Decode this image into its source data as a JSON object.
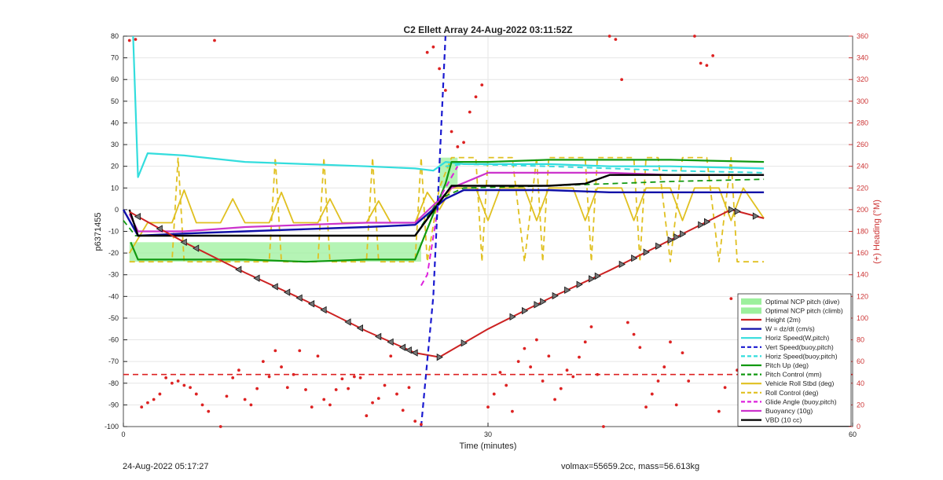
{
  "chart_data": {
    "type": "line",
    "title": "C2 Ellett Array 24-Aug-2022 03:11:52Z",
    "xlabel": "Time (minutes)",
    "ylabel": "p6371455",
    "y2label": "(+) Heading (°M)",
    "xlim": [
      0,
      60
    ],
    "ylim": [
      -100,
      80
    ],
    "y2lim": [
      0,
      360
    ],
    "xticks": [
      0,
      30,
      60
    ],
    "yticks": [
      -100,
      -90,
      -80,
      -70,
      -60,
      -50,
      -40,
      -30,
      -20,
      -10,
      0,
      10,
      20,
      30,
      40,
      50,
      60,
      70,
      80
    ],
    "y2ticks": [
      0,
      20,
      40,
      60,
      80,
      100,
      120,
      140,
      160,
      180,
      200,
      220,
      240,
      260,
      280,
      300,
      320,
      340,
      360
    ],
    "grid": true,
    "legend_position": "bottom-right",
    "colors": {
      "optimal_fill": "#9cf09c",
      "height": "#cc2222",
      "w": "#1010a8",
      "horiz": "#33dddd",
      "vert_dash": "#1a1ad0",
      "pitch": "#119911",
      "roll": "#e0c020",
      "glide": "#dd22dd",
      "buoyancy": "#cc33cc",
      "vbd": "#000000",
      "heading": "#dd2222",
      "right_axis": "#cc3333"
    },
    "legend": [
      {
        "label": "Optimal NCP pitch (dive)",
        "style": "patch",
        "color": "#9cf09c"
      },
      {
        "label": "Optimal NCP pitch (climb)",
        "style": "patch",
        "color": "#9cf09c"
      },
      {
        "label": "Height (2m)",
        "style": "solid",
        "color": "#cc2222"
      },
      {
        "label": "W = dz/dt (cm/s)",
        "style": "solid",
        "color": "#1010a8"
      },
      {
        "label": "Horiz Speed(W,pitch)",
        "style": "solid",
        "color": "#33dddd"
      },
      {
        "label": "Vert Speed(buoy,pitch)",
        "style": "dash",
        "color": "#1a1ad0"
      },
      {
        "label": "Horiz Speed(buoy,pitch)",
        "style": "dash",
        "color": "#33dddd"
      },
      {
        "label": "Pitch Up (deg)",
        "style": "solid",
        "color": "#119911"
      },
      {
        "label": "Pitch Control (mm)",
        "style": "dash",
        "color": "#119911"
      },
      {
        "label": "Vehicle Roll Stbd (deg)",
        "style": "solid",
        "color": "#e0c020"
      },
      {
        "label": "Roll Control (deg)",
        "style": "dash",
        "color": "#e0c020"
      },
      {
        "label": "Glide Angle (buoy,pitch)",
        "style": "dash",
        "color": "#dd22dd"
      },
      {
        "label": "Buoyancy (10g)",
        "style": "solid",
        "color": "#cc33cc"
      },
      {
        "label": "VBD (10 cc)",
        "style": "solid",
        "color": "#000000"
      }
    ],
    "series": [
      {
        "name": "Height (2m)",
        "x": [
          0.5,
          5,
          10,
          15,
          20,
          24,
          26,
          30,
          35,
          40,
          45,
          50,
          52.7
        ],
        "y": [
          -1,
          -15,
          -29,
          -42,
          -56,
          -66,
          -68,
          -55,
          -41,
          -28,
          -14,
          0,
          -4
        ]
      },
      {
        "name": "W = dz/dt (cm/s)",
        "x": [
          0,
          1.2,
          5,
          10,
          15,
          20,
          24,
          26.5,
          28,
          35,
          40,
          45,
          52.7
        ],
        "y": [
          0,
          -12,
          -11,
          -10,
          -9,
          -8,
          -7,
          5,
          9,
          9,
          8,
          8,
          8
        ]
      },
      {
        "name": "Horiz Speed(W,pitch)",
        "x": [
          0.8,
          1.2,
          2,
          5,
          10,
          15,
          20,
          24,
          25.5,
          26.5,
          28,
          35,
          40,
          45,
          52.7
        ],
        "y": [
          80,
          15,
          26,
          25,
          22,
          21,
          20,
          19,
          18,
          22,
          21,
          21,
          20,
          20,
          19
        ]
      },
      {
        "name": "Vert Speed(buoy,pitch)",
        "x": [
          24.5,
          25.5,
          26.5
        ],
        "y": [
          -100,
          -40,
          80
        ]
      },
      {
        "name": "Horiz Speed(buoy,pitch)",
        "x": [
          26.5,
          28,
          35,
          40,
          45,
          52.7
        ],
        "y": [
          20,
          21,
          20,
          19,
          18,
          17
        ]
      },
      {
        "name": "Pitch Up (deg)",
        "x": [
          0.6,
          1.2,
          5,
          10,
          15,
          20,
          24,
          26.5,
          27,
          30,
          35,
          40,
          45,
          52.7
        ],
        "y": [
          -15,
          -23,
          -23,
          -23,
          -24,
          -23,
          -23,
          12,
          22,
          22,
          23,
          23,
          23,
          22
        ]
      },
      {
        "name": "Pitch Control (mm)",
        "x": [
          0,
          1,
          5,
          10,
          15,
          20,
          24,
          26,
          28,
          35,
          40,
          45,
          52.7
        ],
        "y": [
          -5,
          -12,
          -12,
          -12,
          -12,
          -12,
          -12,
          5,
          10,
          11,
          12,
          13,
          14
        ]
      },
      {
        "name": "Vehicle Roll Stbd (deg)",
        "x": [
          0.5,
          2,
          4,
          5,
          6,
          8,
          9,
          10,
          12,
          13,
          14,
          16,
          17,
          18,
          20,
          21,
          22,
          24,
          25,
          26,
          27,
          29,
          30,
          31,
          33,
          34,
          35,
          37,
          38,
          39,
          41,
          42,
          43,
          45,
          46,
          47,
          49,
          50,
          51,
          52.7
        ],
        "y": [
          -20,
          -6,
          -6,
          9,
          -6,
          -6,
          5,
          -6,
          -6,
          8,
          -6,
          -6,
          5,
          -6,
          -6,
          4,
          -6,
          -6,
          8,
          0,
          10,
          10,
          -5,
          10,
          10,
          -5,
          10,
          10,
          -5,
          10,
          10,
          -5,
          10,
          10,
          -5,
          10,
          10,
          -5,
          10,
          -4
        ]
      },
      {
        "name": "Roll Control (deg)",
        "x": [
          0.5,
          4,
          4.5,
          5,
          12,
          12.5,
          13,
          16,
          16.5,
          17,
          20,
          20.5,
          21,
          24,
          24.5,
          25,
          26,
          27,
          29,
          29.5,
          30,
          31,
          32,
          33,
          34,
          34.5,
          35,
          36,
          37,
          38,
          38.5,
          39,
          40,
          41,
          42,
          42.5,
          43,
          44,
          45,
          46,
          47,
          48,
          49,
          50,
          50.5,
          52,
          52.7
        ],
        "y": [
          -24,
          -24,
          24,
          -24,
          -24,
          24,
          -24,
          -24,
          24,
          -24,
          -24,
          24,
          -24,
          -24,
          24,
          -24,
          10,
          24,
          24,
          -24,
          24,
          24,
          24,
          -24,
          24,
          -24,
          24,
          24,
          24,
          24,
          -24,
          24,
          24,
          24,
          24,
          -24,
          24,
          24,
          -24,
          24,
          24,
          24,
          -24,
          24,
          -24,
          -24,
          -24
        ]
      },
      {
        "name": "Glide Angle (buoy,pitch)",
        "x": [
          24.5,
          25,
          26,
          27.5
        ],
        "y": [
          -35,
          -30,
          5,
          20
        ]
      },
      {
        "name": "Buoyancy (10g)",
        "x": [
          0.5,
          1.2,
          5,
          10,
          15,
          20,
          24,
          27,
          30,
          35,
          40,
          45,
          52.7
        ],
        "y": [
          -2,
          -10,
          -10,
          -8,
          -7,
          -6,
          -6,
          10,
          17,
          17,
          17,
          16,
          16
        ]
      },
      {
        "name": "VBD (10 cc)",
        "x": [
          0.5,
          1.2,
          5,
          10,
          15,
          20,
          24,
          27,
          30,
          35,
          38,
          40,
          45,
          52.7
        ],
        "y": [
          0,
          -12,
          -12,
          -12,
          -12,
          -12,
          -12,
          11,
          11,
          11,
          12,
          16,
          16,
          16
        ]
      }
    ],
    "reference_line": {
      "label": "",
      "y": -76,
      "color": "#dd2222",
      "style": "dash"
    },
    "optimal_band": {
      "dive": {
        "x": [
          0.5,
          24.5
        ],
        "y": [
          -24,
          -15
        ]
      },
      "climb": {
        "x": [
          26,
          27.5
        ],
        "y": [
          10,
          24
        ]
      }
    },
    "markers": {
      "dive_x": [
        1.2,
        3,
        5,
        6,
        9.5,
        11,
        12.5,
        13.5,
        14.5,
        15.5,
        16.5,
        18.5,
        19.5,
        21,
        22,
        23,
        23.5,
        24
      ],
      "climb_x": [
        26,
        28,
        32,
        33,
        34,
        34.5,
        35.5,
        36.5,
        37.5,
        38.5,
        39,
        41,
        42,
        43,
        44,
        45,
        45.5,
        46,
        47.5,
        48,
        50,
        50.5,
        52
      ]
    },
    "heading_scatter": {
      "axis": "right",
      "x": [
        0.5,
        1,
        1.5,
        2,
        2.5,
        3,
        3.5,
        4,
        4.5,
        5,
        5.5,
        6,
        6.5,
        7,
        7.5,
        8,
        8.5,
        9,
        9.5,
        10,
        10.5,
        11,
        11.5,
        12,
        12.5,
        13,
        13.5,
        14,
        14.5,
        15,
        15.5,
        16,
        16.5,
        17,
        17.5,
        18,
        18.5,
        19,
        19.5,
        20,
        20.5,
        21,
        21.5,
        22,
        22.5,
        23,
        23.5,
        24,
        24.5,
        25,
        25.5,
        26,
        26.5,
        27,
        27.5,
        28,
        28.5,
        29,
        29.5,
        30,
        30.5,
        31,
        31.5,
        32,
        32.5,
        33,
        33.5,
        34,
        34.5,
        35,
        35.5,
        36,
        36.5,
        37,
        37.5,
        38,
        38.5,
        39,
        39.5,
        40,
        40.5,
        41,
        41.5,
        42,
        42.5,
        43,
        43.5,
        44,
        44.5,
        45,
        45.5,
        46,
        46.5,
        47,
        47.5,
        48,
        48.5,
        49,
        49.5,
        50,
        50.5,
        51,
        51.5,
        52
      ],
      "y": [
        356,
        357,
        18,
        22,
        25,
        30,
        45,
        40,
        42,
        38,
        36,
        30,
        20,
        14,
        356,
        0,
        28,
        45,
        52,
        25,
        20,
        35,
        60,
        46,
        70,
        55,
        36,
        48,
        70,
        34,
        18,
        65,
        25,
        20,
        34,
        44,
        35,
        46,
        45,
        10,
        22,
        26,
        38,
        65,
        30,
        15,
        36,
        5,
        2,
        345,
        350,
        330,
        310,
        272,
        258,
        262,
        290,
        304,
        315,
        18,
        30,
        50,
        38,
        14,
        60,
        72,
        55,
        80,
        42,
        65,
        25,
        35,
        52,
        46,
        64,
        78,
        92,
        48,
        0,
        360,
        357,
        320,
        96,
        85,
        73,
        18,
        30,
        42,
        55,
        78,
        20,
        68,
        42,
        360,
        335,
        333,
        342,
        14,
        36,
        118,
        52,
        32,
        5,
        40
      ]
    }
  },
  "footer": {
    "timestamp": "24-Aug-2022 05:17:27",
    "stats": "volmax=55659.2cc, mass=56.613kg"
  }
}
